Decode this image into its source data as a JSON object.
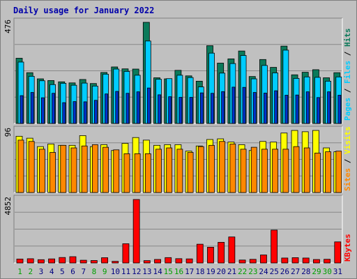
{
  "chart_data": {
    "type": "bar",
    "title": "Daily usage for January 2022",
    "days": [
      "1",
      "2",
      "3",
      "4",
      "5",
      "6",
      "7",
      "8",
      "9",
      "10",
      "11",
      "12",
      "13",
      "14",
      "15",
      "16",
      "17",
      "18",
      "19",
      "20",
      "21",
      "22",
      "23",
      "24",
      "25",
      "26",
      "27",
      "28",
      "29",
      "30",
      "31"
    ],
    "weekend_days": [
      "1",
      "2",
      "8",
      "9",
      "15",
      "16",
      "22",
      "23",
      "29",
      "30"
    ],
    "panels": [
      {
        "key": "top",
        "max_label": "476",
        "ymax": 476,
        "ylabel_parts": [
          "Pages",
          "Files",
          "Hits"
        ],
        "series": [
          {
            "name": "Hits",
            "values": [
              307,
              239,
              210,
              202,
              196,
              191,
              207,
              188,
              240,
              266,
              257,
              256,
              476,
              215,
              210,
              250,
              224,
              199,
              366,
              284,
              304,
              341,
              221,
              301,
              264,
              364,
              229,
              241,
              253,
              215,
              239
            ]
          },
          {
            "name": "Files",
            "values": [
              289,
              222,
              201,
              183,
              189,
              180,
              190,
              176,
              232,
              256,
              245,
              227,
              388,
              208,
              211,
              227,
              216,
              172,
              331,
              237,
              282,
              320,
              210,
              273,
              238,
              345,
              212,
              219,
              217,
              199,
              219
            ]
          },
          {
            "name": "Pages",
            "values": [
              131,
              146,
              121,
              142,
              98,
              103,
              102,
              109,
              139,
              151,
              142,
              149,
              167,
              135,
              126,
              123,
              123,
              144,
              142,
              150,
              171,
              170,
              146,
              143,
              154,
              133,
              134,
              149,
              122,
              149,
              133
            ]
          }
        ]
      },
      {
        "key": "mid",
        "max_label": "96",
        "ymax": 96,
        "ylabel_parts": [
          "Sites",
          "Visits"
        ],
        "series": [
          {
            "name": "Visits",
            "values": [
              87,
              84,
              71,
              75,
              73,
              73,
              88,
              71,
              74,
              65,
              76,
              85,
              81,
              73,
              74,
              74,
              64,
              72,
              82,
              83,
              78,
              74,
              65,
              79,
              78,
              92,
              96,
              94,
              96,
              69,
              63
            ]
          },
          {
            "name": "Sites",
            "values": [
              81,
              79,
              67,
              62,
              73,
              69,
              72,
              74,
              70,
              66,
              60,
              60,
              60,
              67,
              69,
              67,
              62,
              71,
              73,
              79,
              75,
              67,
              70,
              67,
              67,
              67,
              71,
              69,
              61,
              63,
              64
            ]
          }
        ]
      },
      {
        "key": "bottom",
        "max_label": "4852",
        "ymax": 4852,
        "ylabel_parts": [
          "KBytes"
        ],
        "series": [
          {
            "name": "KBytes",
            "values": [
              301,
              324,
              252,
              311,
              418,
              480,
              209,
              187,
              401,
              123,
              1470,
              4852,
              178,
              269,
              410,
              329,
              311,
              1434,
              1205,
              1580,
              1988,
              224,
              278,
              612,
              2513,
              378,
              405,
              378,
              264,
              282,
              1612
            ]
          }
        ]
      }
    ],
    "colors": {
      "hits": "#0b7a5a",
      "files": "#00ccff",
      "pages": "#0033cc",
      "visits": "#ffff00",
      "sites": "#ff8800",
      "kbytes": "#ff0000",
      "title": "#0000aa",
      "weekend": "#00a000",
      "weekday": "#000080",
      "grid": "#888888",
      "panel_bg": "#c0c0c0"
    }
  }
}
